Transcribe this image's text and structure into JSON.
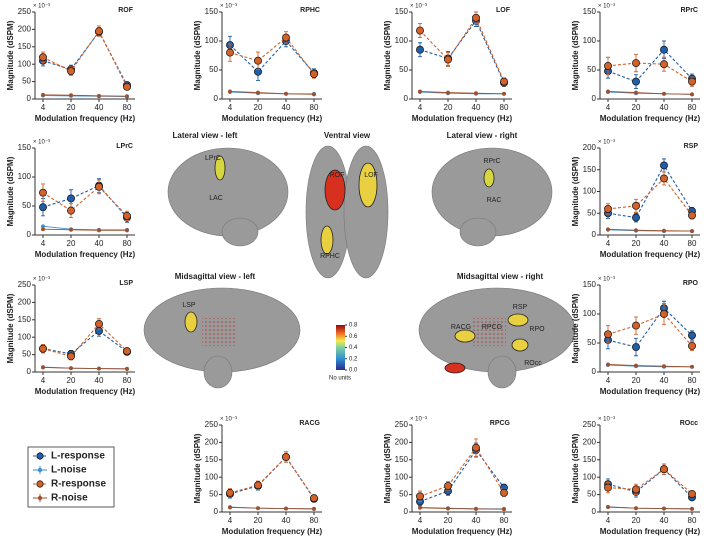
{
  "chart_data": [
    {
      "type": "line",
      "title": "ROF",
      "ylabel": "Magnitude (dSPM)",
      "xlabel": "Modulation frequency (Hz)",
      "y_multiplier": "× 10⁻³",
      "categories": [
        "4",
        "20",
        "40",
        "80"
      ],
      "ylim": [
        0,
        250
      ],
      "yticks": [
        0,
        50,
        100,
        150,
        200,
        250
      ],
      "series": [
        {
          "name": "L-response",
          "color": "#1f5ea8",
          "values": [
            110,
            85,
            193,
            40
          ],
          "errors": [
            15,
            12,
            12,
            8
          ]
        },
        {
          "name": "L-noise",
          "color": "#3b8fd4",
          "values": [
            10,
            9,
            8,
            7
          ]
        },
        {
          "name": "R-response",
          "color": "#d2622a",
          "values": [
            120,
            80,
            195,
            35
          ],
          "errors": [
            15,
            12,
            15,
            8
          ]
        },
        {
          "name": "R-noise",
          "color": "#a0502d",
          "values": [
            12,
            11,
            9,
            8
          ]
        }
      ]
    },
    {
      "type": "line",
      "title": "RPHC",
      "ylabel": "Magnitude (dSPM)",
      "xlabel": "Modulation frequency (Hz)",
      "y_multiplier": "× 10⁻³",
      "categories": [
        "4",
        "20",
        "40",
        "80"
      ],
      "ylim": [
        0,
        150
      ],
      "yticks": [
        0,
        50,
        100,
        150
      ],
      "series": [
        {
          "name": "L-response",
          "color": "#1f5ea8",
          "values": [
            93,
            47,
            100,
            45
          ],
          "errors": [
            15,
            15,
            10,
            7
          ]
        },
        {
          "name": "L-noise",
          "color": "#3b8fd4",
          "values": [
            12,
            10,
            9,
            9
          ]
        },
        {
          "name": "R-response",
          "color": "#d2622a",
          "values": [
            80,
            66,
            106,
            43
          ],
          "errors": [
            15,
            15,
            10,
            7
          ]
        },
        {
          "name": "R-noise",
          "color": "#a0502d",
          "values": [
            13,
            11,
            9,
            8
          ]
        }
      ]
    },
    {
      "type": "line",
      "title": "LOF",
      "ylabel": "Magnitude (dSPM)",
      "xlabel": "Modulation frequency (Hz)",
      "y_multiplier": "× 10⁻³",
      "categories": [
        "4",
        "20",
        "40",
        "80"
      ],
      "ylim": [
        0,
        150
      ],
      "yticks": [
        0,
        50,
        100,
        150
      ],
      "series": [
        {
          "name": "L-response",
          "color": "#1f5ea8",
          "values": [
            85,
            70,
            135,
            28
          ],
          "errors": [
            12,
            12,
            10,
            6
          ]
        },
        {
          "name": "L-noise",
          "color": "#3b8fd4",
          "values": [
            12,
            10,
            9,
            9
          ]
        },
        {
          "name": "R-response",
          "color": "#d2622a",
          "values": [
            118,
            68,
            140,
            30
          ],
          "errors": [
            12,
            12,
            10,
            6
          ]
        },
        {
          "name": "R-noise",
          "color": "#a0502d",
          "values": [
            13,
            11,
            10,
            9
          ]
        }
      ]
    },
    {
      "type": "line",
      "title": "RPrC",
      "ylabel": "Magnitude (dSPM)",
      "xlabel": "Modulation frequency (Hz)",
      "y_multiplier": "× 10⁻³",
      "categories": [
        "4",
        "20",
        "40",
        "80"
      ],
      "ylim": [
        0,
        150
      ],
      "yticks": [
        0,
        50,
        100,
        150
      ],
      "series": [
        {
          "name": "L-response",
          "color": "#1f5ea8",
          "values": [
            48,
            30,
            85,
            35
          ],
          "errors": [
            12,
            12,
            15,
            8
          ]
        },
        {
          "name": "L-noise",
          "color": "#3b8fd4",
          "values": [
            12,
            10,
            9,
            8
          ]
        },
        {
          "name": "R-response",
          "color": "#d2622a",
          "values": [
            57,
            62,
            60,
            30
          ],
          "errors": [
            15,
            15,
            12,
            8
          ]
        },
        {
          "name": "R-noise",
          "color": "#a0502d",
          "values": [
            13,
            11,
            9,
            8
          ]
        }
      ]
    },
    {
      "type": "line",
      "title": "LPrC",
      "ylabel": "Magnitude (dSPM)",
      "xlabel": "Modulation frequency (Hz)",
      "y_multiplier": "× 10⁻³",
      "categories": [
        "4",
        "20",
        "40",
        "80"
      ],
      "ylim": [
        0,
        150
      ],
      "yticks": [
        0,
        50,
        100,
        150
      ],
      "series": [
        {
          "name": "L-response",
          "color": "#1f5ea8",
          "values": [
            48,
            63,
            85,
            30
          ],
          "errors": [
            15,
            15,
            12,
            8
          ]
        },
        {
          "name": "L-noise",
          "color": "#3b8fd4",
          "values": [
            15,
            10,
            9,
            9
          ]
        },
        {
          "name": "R-response",
          "color": "#d2622a",
          "values": [
            73,
            42,
            83,
            33
          ],
          "errors": [
            15,
            12,
            12,
            8
          ]
        },
        {
          "name": "R-noise",
          "color": "#a0502d",
          "values": [
            10,
            9,
            8,
            8
          ]
        }
      ]
    },
    {
      "type": "line",
      "title": "RSP",
      "ylabel": "Magnitude (dSPM)",
      "xlabel": "Modulation frequency (Hz)",
      "y_multiplier": "× 10⁻³",
      "categories": [
        "4",
        "20",
        "40",
        "80"
      ],
      "ylim": [
        0,
        200
      ],
      "yticks": [
        0,
        50,
        100,
        150,
        200
      ],
      "series": [
        {
          "name": "L-response",
          "color": "#1f5ea8",
          "values": [
            50,
            40,
            160,
            55
          ],
          "errors": [
            12,
            10,
            15,
            8
          ]
        },
        {
          "name": "L-noise",
          "color": "#3b8fd4",
          "values": [
            12,
            10,
            9,
            9
          ]
        },
        {
          "name": "R-response",
          "color": "#d2622a",
          "values": [
            60,
            67,
            130,
            45
          ],
          "errors": [
            12,
            15,
            15,
            8
          ]
        },
        {
          "name": "R-noise",
          "color": "#a0502d",
          "values": [
            13,
            11,
            10,
            9
          ]
        }
      ]
    },
    {
      "type": "line",
      "title": "LSP",
      "ylabel": "Magnitude (dSPM)",
      "xlabel": "Modulation frequency (Hz)",
      "y_multiplier": "× 10⁻³",
      "categories": [
        "4",
        "20",
        "40",
        "80"
      ],
      "ylim": [
        0,
        250
      ],
      "yticks": [
        0,
        50,
        100,
        150,
        200,
        250
      ],
      "series": [
        {
          "name": "L-response",
          "color": "#1f5ea8",
          "values": [
            67,
            52,
            118,
            58
          ],
          "errors": [
            12,
            10,
            15,
            8
          ]
        },
        {
          "name": "L-noise",
          "color": "#3b8fd4",
          "values": [
            14,
            11,
            10,
            9
          ]
        },
        {
          "name": "R-response",
          "color": "#d2622a",
          "values": [
            67,
            45,
            138,
            60
          ],
          "errors": [
            12,
            10,
            15,
            8
          ]
        },
        {
          "name": "R-noise",
          "color": "#a0502d",
          "values": [
            13,
            11,
            10,
            9
          ]
        }
      ]
    },
    {
      "type": "line",
      "title": "RPO",
      "ylabel": "Magnitude (dSPM)",
      "xlabel": "Modulation frequency (Hz)",
      "y_multiplier": "× 10⁻³",
      "categories": [
        "4",
        "20",
        "40",
        "80"
      ],
      "ylim": [
        0,
        150
      ],
      "yticks": [
        0,
        50,
        100,
        150
      ],
      "series": [
        {
          "name": "L-response",
          "color": "#1f5ea8",
          "values": [
            55,
            43,
            110,
            63
          ],
          "errors": [
            15,
            15,
            12,
            8
          ]
        },
        {
          "name": "L-noise",
          "color": "#3b8fd4",
          "values": [
            12,
            10,
            9,
            9
          ]
        },
        {
          "name": "R-response",
          "color": "#d2622a",
          "values": [
            65,
            80,
            100,
            45
          ],
          "errors": [
            15,
            15,
            18,
            8
          ]
        },
        {
          "name": "R-noise",
          "color": "#a0502d",
          "values": [
            13,
            11,
            10,
            9
          ]
        }
      ]
    },
    {
      "type": "line",
      "title": "RACG",
      "ylabel": "Magnitude (dSPM)",
      "xlabel": "Modulation frequency (Hz)",
      "y_multiplier": "× 10⁻³",
      "categories": [
        "4",
        "20",
        "40",
        "80"
      ],
      "ylim": [
        0,
        250
      ],
      "yticks": [
        0,
        50,
        100,
        150,
        200,
        250
      ],
      "series": [
        {
          "name": "L-response",
          "color": "#1f5ea8",
          "values": [
            52,
            75,
            158,
            38
          ],
          "errors": [
            12,
            12,
            15,
            8
          ]
        },
        {
          "name": "L-noise",
          "color": "#3b8fd4",
          "values": [
            14,
            11,
            10,
            9
          ]
        },
        {
          "name": "R-response",
          "color": "#d2622a",
          "values": [
            55,
            77,
            158,
            40
          ],
          "errors": [
            12,
            12,
            15,
            8
          ]
        },
        {
          "name": "R-noise",
          "color": "#a0502d",
          "values": [
            13,
            11,
            10,
            9
          ]
        }
      ]
    },
    {
      "type": "line",
      "title": "RPCG",
      "ylabel": "Magnitude (dSPM)",
      "xlabel": "Modulation frequency (Hz)",
      "y_multiplier": "× 10⁻³",
      "categories": [
        "4",
        "20",
        "40",
        "80"
      ],
      "ylim": [
        0,
        250
      ],
      "yticks": [
        0,
        50,
        100,
        150,
        200,
        250
      ],
      "series": [
        {
          "name": "L-response",
          "color": "#1f5ea8",
          "values": [
            30,
            60,
            178,
            70
          ],
          "errors": [
            12,
            12,
            20,
            10
          ]
        },
        {
          "name": "L-noise",
          "color": "#3b8fd4",
          "values": [
            13,
            11,
            9,
            9
          ]
        },
        {
          "name": "R-response",
          "color": "#d2622a",
          "values": [
            45,
            75,
            185,
            55
          ],
          "errors": [
            15,
            12,
            25,
            10
          ]
        },
        {
          "name": "R-noise",
          "color": "#a0502d",
          "values": [
            12,
            10,
            9,
            8
          ]
        }
      ]
    },
    {
      "type": "line",
      "title": "ROcc",
      "ylabel": "Magnitude (dSPM)",
      "xlabel": "Modulation frequency (Hz)",
      "y_multiplier": "× 10⁻³",
      "categories": [
        "4",
        "20",
        "40",
        "80"
      ],
      "ylim": [
        0,
        250
      ],
      "yticks": [
        0,
        50,
        100,
        150,
        200,
        250
      ],
      "series": [
        {
          "name": "L-response",
          "color": "#1f5ea8",
          "values": [
            80,
            58,
            123,
            42
          ],
          "errors": [
            15,
            15,
            15,
            8
          ]
        },
        {
          "name": "L-noise",
          "color": "#3b8fd4",
          "values": [
            15,
            11,
            10,
            9
          ]
        },
        {
          "name": "R-response",
          "color": "#d2622a",
          "values": [
            70,
            65,
            123,
            52
          ],
          "errors": [
            15,
            15,
            15,
            8
          ]
        },
        {
          "name": "R-noise",
          "color": "#a0502d",
          "values": [
            14,
            11,
            10,
            9
          ]
        }
      ]
    }
  ],
  "figure": {
    "views": [
      {
        "title": "Lateral view - left",
        "labels": [
          "LPrC",
          "LAC"
        ]
      },
      {
        "title": "Ventral view",
        "labels": [
          "ROF",
          "LOF",
          "RPHC"
        ]
      },
      {
        "title": "Lateral view - right",
        "labels": [
          "RPrC",
          "RAC"
        ]
      },
      {
        "title": "Midsagittal view - left",
        "labels": [
          "LSP"
        ]
      },
      {
        "title": "Midsagittal view - right",
        "labels": [
          "RACG",
          "RPCG",
          "RSP",
          "RPO",
          "ROcc"
        ]
      }
    ],
    "colorbar": {
      "ticks": [
        {
          "value": 0,
          "label": "0.0"
        },
        0.2,
        0.4,
        0.6,
        0.8
      ],
      "label": "No units"
    }
  }
}
